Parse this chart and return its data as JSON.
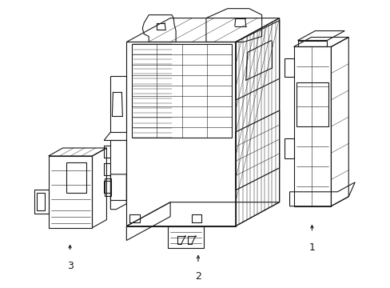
{
  "background_color": "#ffffff",
  "line_color": "#1a1a1a",
  "line_width": 0.8,
  "thin_lw": 0.4,
  "fig_width": 4.89,
  "fig_height": 3.6,
  "dpi": 100,
  "label_1": "1",
  "label_2": "2",
  "label_3": "3",
  "label_fontsize": 9,
  "arrow_fontsize": 7
}
